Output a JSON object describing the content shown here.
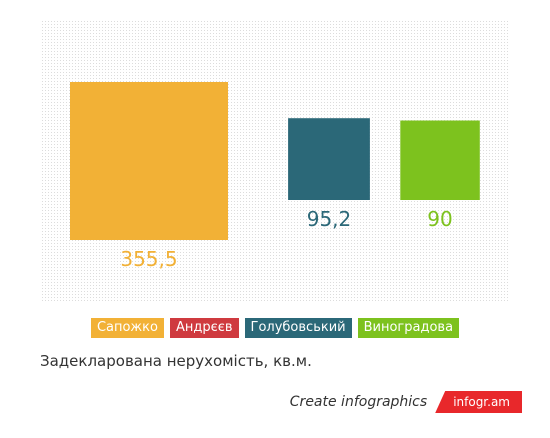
{
  "chart_data": {
    "type": "area",
    "categories": [
      "Сапожко",
      "Андрєєв",
      "Голубовський",
      "Виноградова"
    ],
    "values": [
      355.5,
      null,
      95.2,
      90
    ],
    "value_labels": [
      "355,5",
      "",
      "95,2",
      "90"
    ],
    "colors": [
      "#f2b136",
      "#cf3a3f",
      "#2b6878",
      "#7dc21e"
    ],
    "legend_placement": "bottom",
    "title": ""
  },
  "caption": "Задекларована нерухомість, кв.м.",
  "branding": {
    "text": "Create infographics",
    "logo": "infogr.am"
  }
}
